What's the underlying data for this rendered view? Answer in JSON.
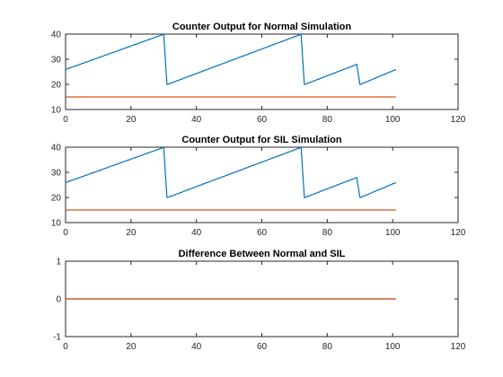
{
  "chart_data": [
    {
      "type": "line",
      "title": "Counter Output for Normal Simulation",
      "xlim": [
        0,
        120
      ],
      "ylim": [
        10,
        40
      ],
      "xticks": [
        0,
        20,
        40,
        60,
        80,
        100,
        120
      ],
      "yticks": [
        10,
        20,
        30,
        40
      ],
      "grid": false,
      "series": [
        {
          "color": "#0072BD",
          "style": "sawtooth",
          "x": [
            0,
            30,
            31,
            72,
            73,
            89,
            90,
            101
          ],
          "y": [
            26,
            40,
            20,
            40,
            20,
            28,
            20,
            26
          ]
        },
        {
          "color": "#D95319",
          "x": [
            0,
            101
          ],
          "y": [
            15,
            15
          ]
        }
      ]
    },
    {
      "type": "line",
      "title": "Counter Output for SIL Simulation",
      "xlim": [
        0,
        120
      ],
      "ylim": [
        10,
        40
      ],
      "xticks": [
        0,
        20,
        40,
        60,
        80,
        100,
        120
      ],
      "yticks": [
        10,
        20,
        30,
        40
      ],
      "grid": false,
      "series": [
        {
          "color": "#0072BD",
          "style": "sawtooth",
          "x": [
            0,
            30,
            31,
            72,
            73,
            89,
            90,
            101
          ],
          "y": [
            26,
            40,
            20,
            40,
            20,
            28,
            20,
            26
          ]
        },
        {
          "color": "#D95319",
          "x": [
            0,
            101
          ],
          "y": [
            15,
            15
          ]
        }
      ]
    },
    {
      "type": "line",
      "title": "Difference Between Normal and SIL",
      "xlim": [
        0,
        120
      ],
      "ylim": [
        -1,
        1
      ],
      "xticks": [
        0,
        20,
        40,
        60,
        80,
        100,
        120
      ],
      "yticks": [
        -1,
        0,
        1
      ],
      "grid": false,
      "series": [
        {
          "color": "#0072BD",
          "x": [
            0,
            101
          ],
          "y": [
            0,
            0
          ]
        },
        {
          "color": "#D95319",
          "x": [
            0,
            101
          ],
          "y": [
            0,
            0
          ]
        }
      ]
    }
  ]
}
